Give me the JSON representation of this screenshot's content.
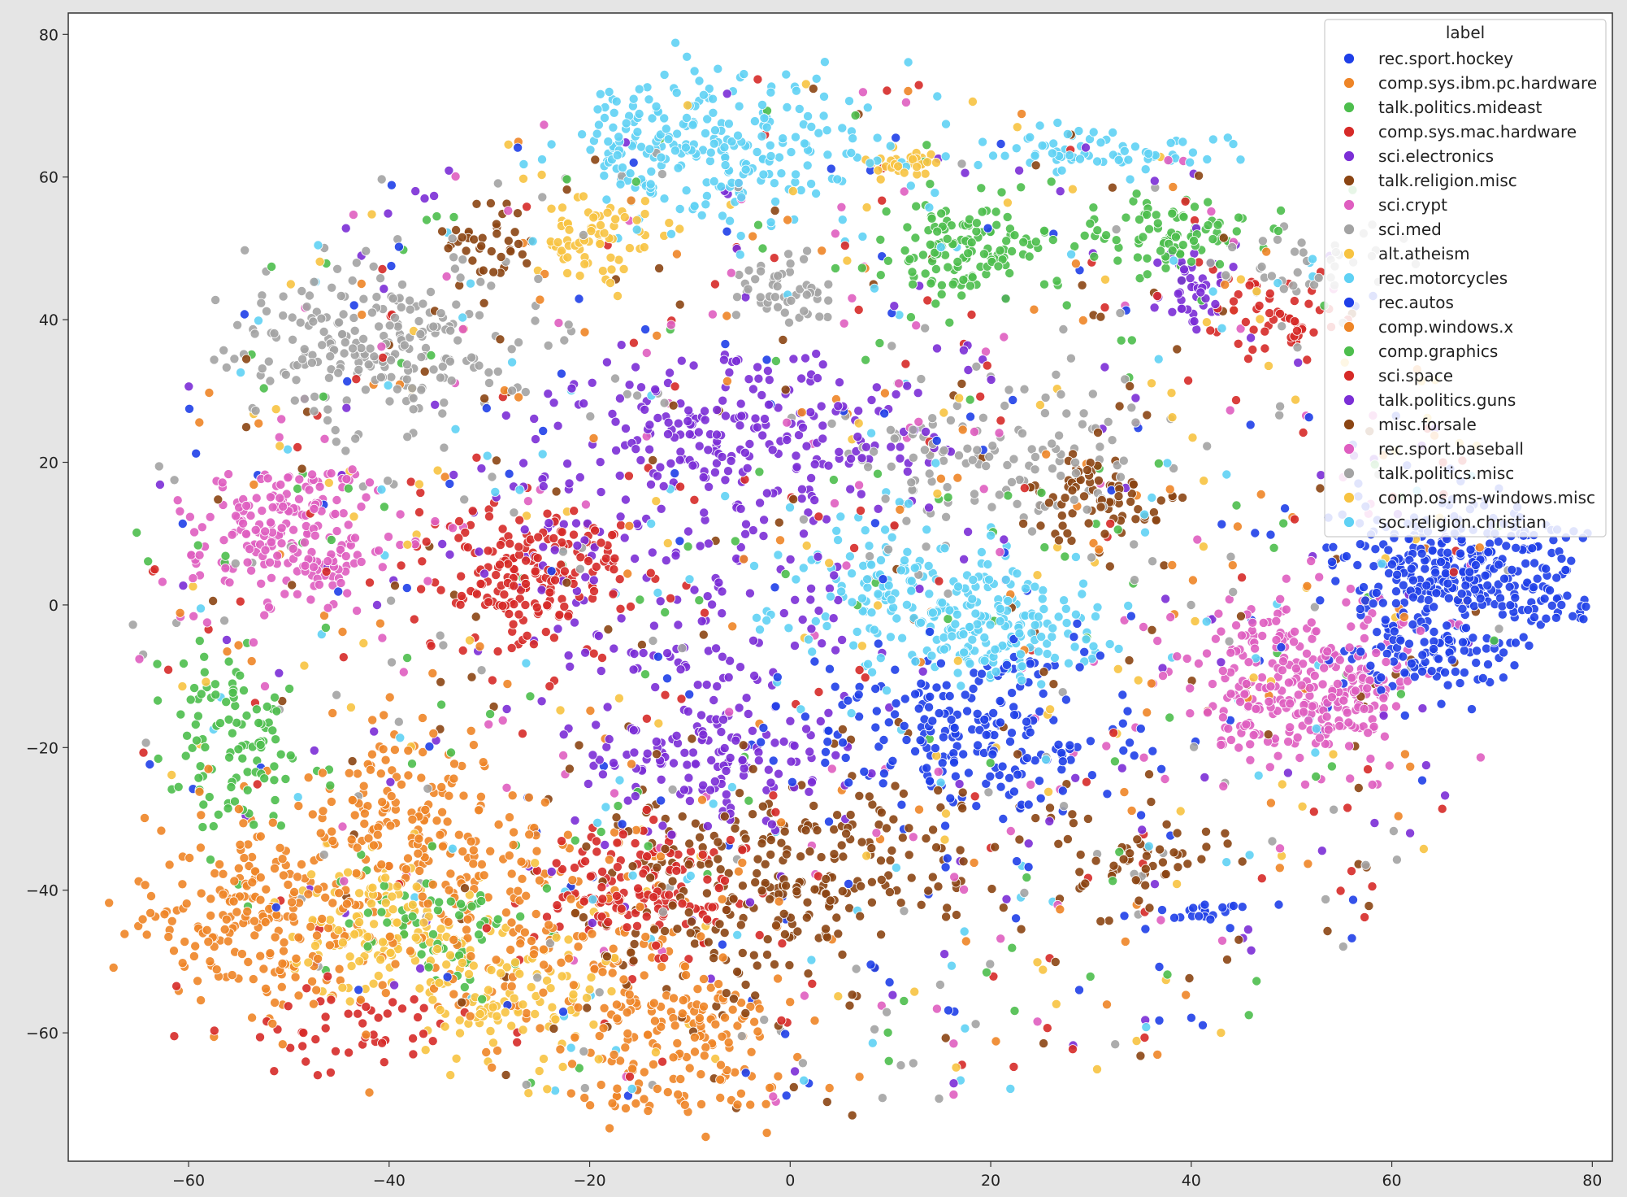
{
  "chart_data": {
    "type": "scatter",
    "title": "",
    "xlabel": "",
    "ylabel": "",
    "xlim": [
      -72,
      82
    ],
    "ylim": [
      -78,
      83
    ],
    "xticks": [
      -60,
      -40,
      -20,
      0,
      20,
      40,
      60,
      80
    ],
    "yticks": [
      -60,
      -40,
      -20,
      0,
      20,
      40,
      60,
      80
    ],
    "grid": false,
    "legend": {
      "title": "label",
      "placement": "top-right"
    },
    "series": [
      {
        "name": "rec.sport.hockey",
        "color": "#1f3fe8",
        "clusters": [
          {
            "x": 67,
            "y": 4,
            "sx": 6,
            "sy": 5,
            "n": 360
          },
          {
            "x": 64,
            "y": -8,
            "sx": 4,
            "sy": 3,
            "n": 80
          }
        ]
      },
      {
        "name": "comp.sys.ibm.pc.hardware",
        "color": "#ee8527",
        "clusters": [
          {
            "x": -53,
            "y": -45,
            "sx": 6,
            "sy": 7,
            "n": 220
          },
          {
            "x": -39,
            "y": -30,
            "sx": 5,
            "sy": 6,
            "n": 150
          },
          {
            "x": -10,
            "y": -60,
            "sx": 6,
            "sy": 6,
            "n": 170
          }
        ]
      },
      {
        "name": "talk.politics.mideast",
        "color": "#4dbe4d",
        "clusters": [
          {
            "x": 17,
            "y": 50,
            "sx": 4,
            "sy": 4,
            "n": 130
          },
          {
            "x": -56,
            "y": -18,
            "sx": 3,
            "sy": 6,
            "n": 100
          }
        ]
      },
      {
        "name": "comp.sys.mac.hardware",
        "color": "#d62a28",
        "clusters": [
          {
            "x": -26,
            "y": 4,
            "sx": 6,
            "sy": 5,
            "n": 200
          },
          {
            "x": -15,
            "y": -40,
            "sx": 6,
            "sy": 5,
            "n": 150
          }
        ]
      },
      {
        "name": "sci.electronics",
        "color": "#7b2ed6",
        "clusters": [
          {
            "x": -4,
            "y": 24,
            "sx": 10,
            "sy": 5,
            "n": 230
          },
          {
            "x": -8,
            "y": -22,
            "sx": 6,
            "sy": 4,
            "n": 130
          }
        ]
      },
      {
        "name": "talk.religion.misc",
        "color": "#8b4513",
        "clusters": [
          {
            "x": -30,
            "y": 50,
            "sx": 3,
            "sy": 3,
            "n": 40
          },
          {
            "x": 5,
            "y": -35,
            "sx": 10,
            "sy": 6,
            "n": 140
          },
          {
            "x": 35,
            "y": -35,
            "sx": 5,
            "sy": 3,
            "n": 50
          }
        ]
      },
      {
        "name": "sci.crypt",
        "color": "#df5ec0",
        "clusters": [
          {
            "x": -50,
            "y": 10,
            "sx": 5,
            "sy": 5,
            "n": 220
          },
          {
            "x": 52,
            "y": -12,
            "sx": 5,
            "sy": 5,
            "n": 230
          }
        ]
      },
      {
        "name": "sci.med",
        "color": "#a3a3a3",
        "clusters": [
          {
            "x": -42,
            "y": 36,
            "sx": 7,
            "sy": 6,
            "n": 230
          },
          {
            "x": -1,
            "y": 44,
            "sx": 3,
            "sy": 2,
            "n": 50
          }
        ]
      },
      {
        "name": "alt.atheism",
        "color": "#f7c341",
        "clusters": [
          {
            "x": -20,
            "y": 52,
            "sx": 3,
            "sy": 3,
            "n": 70
          },
          {
            "x": -40,
            "y": -45,
            "sx": 5,
            "sy": 5,
            "n": 120
          },
          {
            "x": 12,
            "y": 62,
            "sx": 2,
            "sy": 1,
            "n": 30
          }
        ]
      },
      {
        "name": "rec.motorcycles",
        "color": "#5fd1f4",
        "clusters": [
          {
            "x": -5,
            "y": 64,
            "sx": 7,
            "sy": 5,
            "n": 180
          },
          {
            "x": 22,
            "y": -3,
            "sx": 5,
            "sy": 4,
            "n": 160
          },
          {
            "x": 30,
            "y": 64,
            "sx": 6,
            "sy": 1.5,
            "n": 70
          }
        ]
      },
      {
        "name": "rec.autos",
        "color": "#1f3fe8",
        "clusters": [
          {
            "x": 18,
            "y": -18,
            "sx": 8,
            "sy": 6,
            "n": 220
          },
          {
            "x": 42,
            "y": -43,
            "sx": 2,
            "sy": 1,
            "n": 20
          }
        ]
      },
      {
        "name": "comp.windows.x",
        "color": "#ee8527",
        "clusters": [
          {
            "x": -25,
            "y": -45,
            "sx": 8,
            "sy": 8,
            "n": 180
          }
        ]
      },
      {
        "name": "comp.graphics",
        "color": "#4dbe4d",
        "clusters": [
          {
            "x": 38,
            "y": 52,
            "sx": 5,
            "sy": 3,
            "n": 90
          },
          {
            "x": -35,
            "y": -45,
            "sx": 4,
            "sy": 4,
            "n": 60
          }
        ]
      },
      {
        "name": "sci.space",
        "color": "#d62a28",
        "clusters": [
          {
            "x": 48,
            "y": 40,
            "sx": 3,
            "sy": 3,
            "n": 50
          },
          {
            "x": -45,
            "y": -60,
            "sx": 6,
            "sy": 3,
            "n": 50
          }
        ]
      },
      {
        "name": "talk.politics.guns",
        "color": "#7b2ed6",
        "clusters": [
          {
            "x": 40,
            "y": 44,
            "sx": 2,
            "sy": 3,
            "n": 40
          },
          {
            "x": -10,
            "y": 0,
            "sx": 10,
            "sy": 10,
            "n": 150
          }
        ]
      },
      {
        "name": "misc.forsale",
        "color": "#8b4513",
        "clusters": [
          {
            "x": -5,
            "y": -42,
            "sx": 8,
            "sy": 8,
            "n": 150
          },
          {
            "x": 30,
            "y": 15,
            "sx": 4,
            "sy": 4,
            "n": 80
          }
        ]
      },
      {
        "name": "rec.sport.baseball",
        "color": "#df5ec0",
        "clusters": [
          {
            "x": 48,
            "y": -8,
            "sx": 6,
            "sy": 6,
            "n": 80
          }
        ]
      },
      {
        "name": "talk.politics.misc",
        "color": "#a3a3a3",
        "clusters": [
          {
            "x": 20,
            "y": 20,
            "sx": 8,
            "sy": 6,
            "n": 130
          },
          {
            "x": 52,
            "y": 48,
            "sx": 4,
            "sy": 3,
            "n": 40
          }
        ]
      },
      {
        "name": "comp.os.ms-windows.misc",
        "color": "#f7c341",
        "clusters": [
          {
            "x": -28,
            "y": -55,
            "sx": 6,
            "sy": 5,
            "n": 100
          }
        ]
      },
      {
        "name": "soc.religion.christian",
        "color": "#5fd1f4",
        "clusters": [
          {
            "x": 10,
            "y": 2,
            "sx": 6,
            "sy": 6,
            "n": 120
          },
          {
            "x": -15,
            "y": 64,
            "sx": 4,
            "sy": 5,
            "n": 80
          }
        ]
      }
    ]
  }
}
